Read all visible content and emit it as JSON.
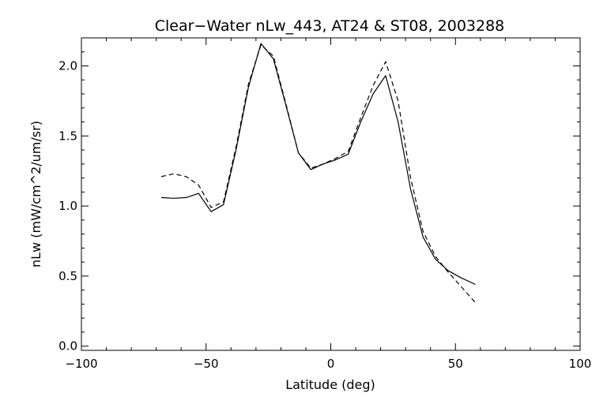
{
  "chart_data": {
    "type": "line",
    "title": "Clear−Water nLw_443, AT24 & ST08, 2003288",
    "xlabel": "Latitude (deg)",
    "ylabel": "nLw (mW/cm^2/um/sr)",
    "xlim": [
      -100,
      100
    ],
    "ylim": [
      -0.03,
      2.2
    ],
    "x_ticks": [
      -100,
      -50,
      0,
      50,
      100
    ],
    "x_tick_labels": [
      "−100",
      "−50",
      "0",
      "50",
      "100"
    ],
    "y_ticks": [
      0.0,
      0.5,
      1.0,
      1.5,
      2.0
    ],
    "y_tick_labels": [
      "0.0",
      "0.5",
      "1.0",
      "1.5",
      "2.0"
    ],
    "grid": false,
    "series": [
      {
        "line_style": "solid",
        "color": "#000000",
        "x": [
          -68,
          -63,
          -58,
          -53,
          -48,
          -43,
          -38,
          -33,
          -28,
          -23,
          -18,
          -13,
          -8,
          -3,
          2,
          7,
          12,
          17,
          22,
          27,
          32,
          37,
          42,
          47,
          52,
          58
        ],
        "y": [
          1.06,
          1.055,
          1.06,
          1.09,
          0.96,
          1.01,
          1.4,
          1.85,
          2.16,
          2.05,
          1.72,
          1.38,
          1.26,
          1.3,
          1.33,
          1.37,
          1.6,
          1.8,
          1.93,
          1.6,
          1.12,
          0.78,
          0.62,
          0.54,
          0.49,
          0.44
        ]
      },
      {
        "line_style": "dashed",
        "color": "#000000",
        "x": [
          -68,
          -63,
          -58,
          -53,
          -48,
          -43,
          -38,
          -33,
          -28,
          -23,
          -18,
          -13,
          -8,
          -3,
          2,
          7,
          12,
          17,
          22,
          27,
          32,
          37,
          42,
          47,
          52,
          58
        ],
        "y": [
          1.21,
          1.23,
          1.21,
          1.15,
          0.99,
          1.03,
          1.42,
          1.87,
          2.15,
          2.07,
          1.73,
          1.38,
          1.27,
          1.3,
          1.34,
          1.39,
          1.63,
          1.86,
          2.03,
          1.75,
          1.2,
          0.82,
          0.64,
          0.53,
          0.43,
          0.31
        ]
      }
    ]
  }
}
